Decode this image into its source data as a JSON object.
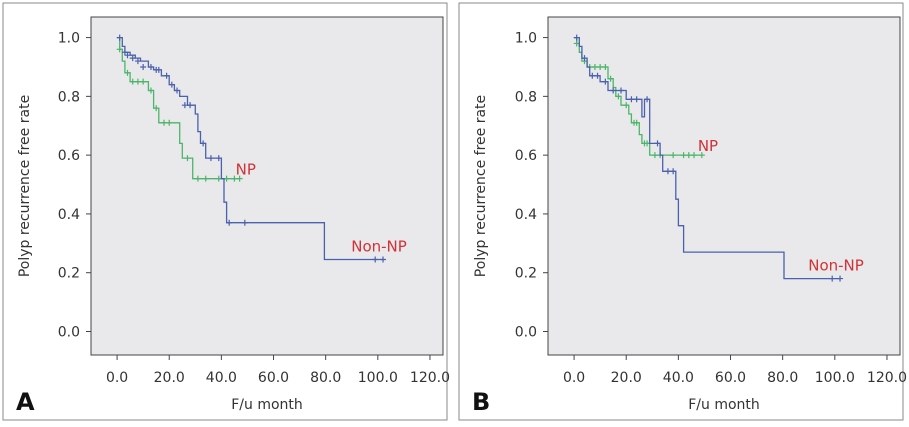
{
  "colors": {
    "non_np": "#4a61ad",
    "np": "#4cb56a",
    "label": "#d03236",
    "plot_bg": "#e9e9ec"
  },
  "chart_data": [
    {
      "type": "line",
      "panel_label": "A",
      "xlabel": "F/u month",
      "ylabel": "Polyp recurrence free rate",
      "xlim": [
        -10,
        125
      ],
      "ylim": [
        -0.08,
        1.07
      ],
      "xticks": [
        "0.0",
        "20.0",
        "40.0",
        "60.0",
        "80.0",
        "100.0",
        "120.0"
      ],
      "yticks": [
        "0.0",
        "0.2",
        "0.4",
        "0.6",
        "0.8",
        "1.0"
      ],
      "series": [
        {
          "name": "Non-NP",
          "label": "Non-NP",
          "color": "#4a61ad",
          "steps": [
            [
              0,
              1.0
            ],
            [
              2,
              0.97
            ],
            [
              3,
              0.95
            ],
            [
              5,
              0.94
            ],
            [
              7,
              0.93
            ],
            [
              9,
              0.92
            ],
            [
              12,
              0.9
            ],
            [
              14,
              0.89
            ],
            [
              17,
              0.87
            ],
            [
              20,
              0.84
            ],
            [
              22,
              0.82
            ],
            [
              24,
              0.8
            ],
            [
              27,
              0.77
            ],
            [
              30,
              0.74
            ],
            [
              31,
              0.68
            ],
            [
              32,
              0.64
            ],
            [
              34,
              0.59
            ],
            [
              40,
              0.52
            ],
            [
              41,
              0.44
            ],
            [
              42,
              0.37
            ],
            [
              79,
              0.37
            ],
            [
              79.5,
              0.245
            ],
            [
              102,
              0.245
            ]
          ],
          "censored": [
            [
              1,
              1.0
            ],
            [
              3,
              0.95
            ],
            [
              4,
              0.94
            ],
            [
              6,
              0.93
            ],
            [
              8,
              0.92
            ],
            [
              10,
              0.9
            ],
            [
              13,
              0.9
            ],
            [
              15,
              0.89
            ],
            [
              16,
              0.89
            ],
            [
              19,
              0.87
            ],
            [
              21,
              0.84
            ],
            [
              23,
              0.82
            ],
            [
              26,
              0.77
            ],
            [
              28,
              0.77
            ],
            [
              33,
              0.64
            ],
            [
              36,
              0.59
            ],
            [
              39,
              0.59
            ],
            [
              43,
              0.37
            ],
            [
              49,
              0.37
            ],
            [
              99,
              0.245
            ],
            [
              102,
              0.245
            ]
          ]
        },
        {
          "name": "NP",
          "label": "NP",
          "color": "#4cb56a",
          "steps": [
            [
              0,
              1.0
            ],
            [
              1,
              0.96
            ],
            [
              2,
              0.92
            ],
            [
              3,
              0.88
            ],
            [
              5,
              0.85
            ],
            [
              12,
              0.82
            ],
            [
              14,
              0.76
            ],
            [
              16,
              0.71
            ],
            [
              24,
              0.64
            ],
            [
              25,
              0.59
            ],
            [
              29,
              0.52
            ],
            [
              47,
              0.52
            ]
          ],
          "censored": [
            [
              1,
              0.96
            ],
            [
              4,
              0.88
            ],
            [
              6,
              0.85
            ],
            [
              8,
              0.85
            ],
            [
              10,
              0.85
            ],
            [
              13,
              0.82
            ],
            [
              15,
              0.76
            ],
            [
              18,
              0.71
            ],
            [
              20,
              0.71
            ],
            [
              27,
              0.59
            ],
            [
              31,
              0.52
            ],
            [
              34,
              0.52
            ],
            [
              39,
              0.52
            ],
            [
              42,
              0.52
            ],
            [
              45,
              0.52
            ],
            [
              47,
              0.52
            ]
          ]
        }
      ]
    },
    {
      "type": "line",
      "panel_label": "B",
      "xlabel": "F/u month",
      "ylabel": "Polyp recurrence free rate",
      "xlim": [
        -10,
        125
      ],
      "ylim": [
        -0.08,
        1.07
      ],
      "xticks": [
        "0.0",
        "20.0",
        "40.0",
        "60.0",
        "80.0",
        "100.0",
        "120.0"
      ],
      "yticks": [
        "0.0",
        "0.2",
        "0.4",
        "0.6",
        "0.8",
        "1.0"
      ],
      "series": [
        {
          "name": "Non-NP",
          "label": "Non-NP",
          "color": "#4a61ad",
          "steps": [
            [
              0,
              1.0
            ],
            [
              2,
              0.97
            ],
            [
              3,
              0.93
            ],
            [
              5,
              0.9
            ],
            [
              6,
              0.87
            ],
            [
              10,
              0.85
            ],
            [
              13,
              0.82
            ],
            [
              20,
              0.79
            ],
            [
              26,
              0.73
            ],
            [
              27,
              0.79
            ],
            [
              29,
              0.64
            ],
            [
              33,
              0.6
            ],
            [
              34,
              0.545
            ],
            [
              39,
              0.45
            ],
            [
              40,
              0.36
            ],
            [
              42,
              0.27
            ],
            [
              80,
              0.27
            ],
            [
              80.5,
              0.18
            ],
            [
              102,
              0.18
            ]
          ],
          "censored": [
            [
              1,
              1.0
            ],
            [
              4,
              0.93
            ],
            [
              7,
              0.87
            ],
            [
              9,
              0.87
            ],
            [
              12,
              0.85
            ],
            [
              15,
              0.82
            ],
            [
              18,
              0.82
            ],
            [
              22,
              0.79
            ],
            [
              24,
              0.79
            ],
            [
              28,
              0.79
            ],
            [
              32,
              0.64
            ],
            [
              36,
              0.545
            ],
            [
              38,
              0.545
            ],
            [
              99,
              0.18
            ],
            [
              102,
              0.18
            ]
          ]
        },
        {
          "name": "NP",
          "label": "NP",
          "color": "#4cb56a",
          "steps": [
            [
              0,
              1.0
            ],
            [
              1,
              0.98
            ],
            [
              2,
              0.95
            ],
            [
              3,
              0.92
            ],
            [
              5,
              0.9
            ],
            [
              13,
              0.86
            ],
            [
              15,
              0.83
            ],
            [
              16,
              0.8
            ],
            [
              18,
              0.77
            ],
            [
              21,
              0.74
            ],
            [
              22,
              0.71
            ],
            [
              25,
              0.67
            ],
            [
              26,
              0.64
            ],
            [
              29,
              0.6
            ],
            [
              49,
              0.6
            ]
          ],
          "censored": [
            [
              1,
              0.98
            ],
            [
              4,
              0.92
            ],
            [
              6,
              0.9
            ],
            [
              8,
              0.9
            ],
            [
              10,
              0.9
            ],
            [
              12,
              0.9
            ],
            [
              14,
              0.86
            ],
            [
              17,
              0.8
            ],
            [
              20,
              0.77
            ],
            [
              23,
              0.71
            ],
            [
              24,
              0.71
            ],
            [
              27,
              0.64
            ],
            [
              28,
              0.64
            ],
            [
              31,
              0.6
            ],
            [
              33,
              0.6
            ],
            [
              38,
              0.6
            ],
            [
              42,
              0.6
            ],
            [
              44,
              0.6
            ],
            [
              46,
              0.6
            ],
            [
              49,
              0.6
            ]
          ]
        }
      ]
    }
  ]
}
